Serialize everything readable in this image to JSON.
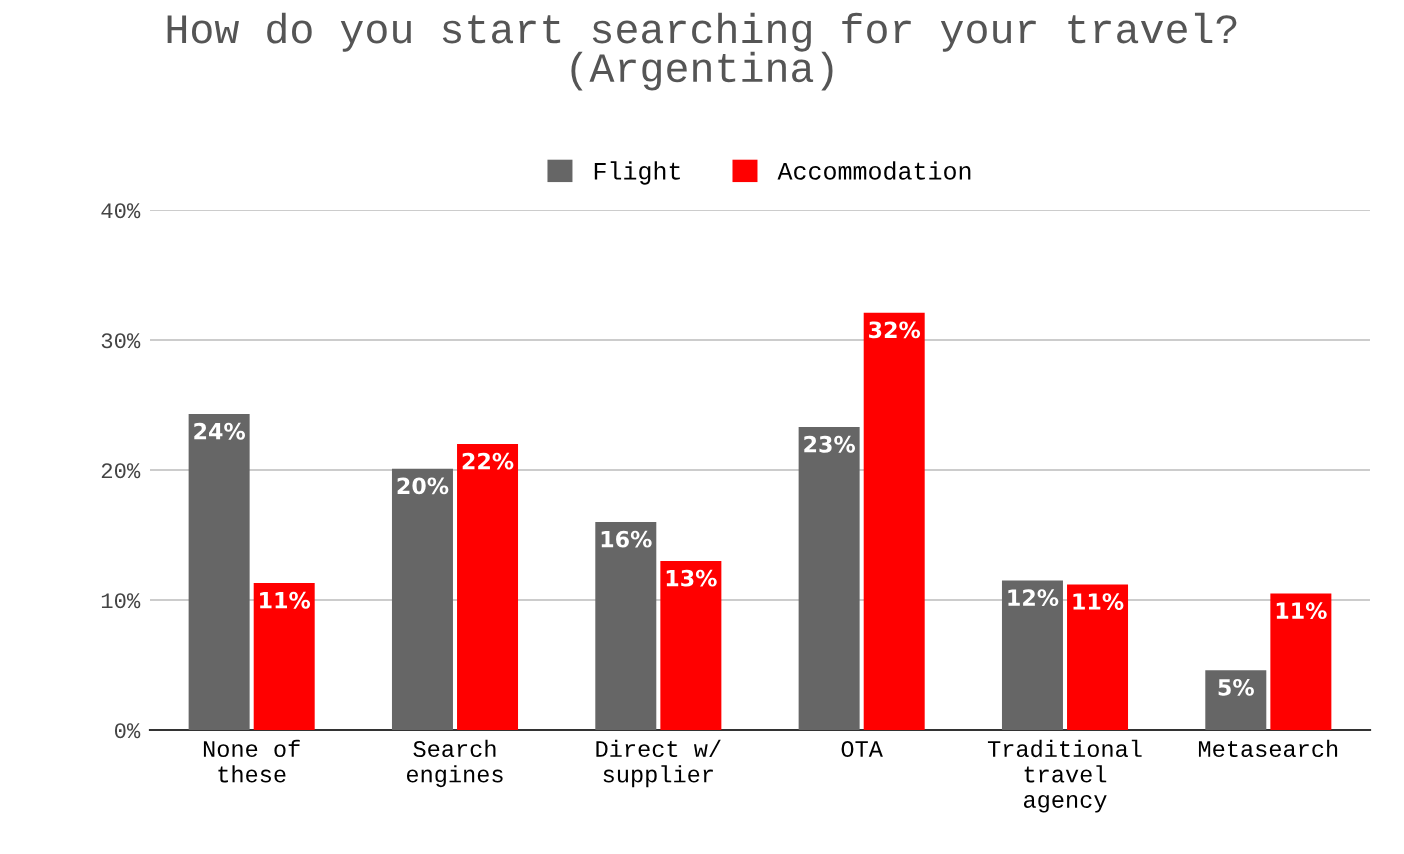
{
  "chart_data": {
    "type": "bar",
    "title": "How do you start searching for your travel?\n(Argentina)",
    "categories": [
      "None of\nthese",
      "Search\nengines",
      "Direct w/\nsupplier",
      "OTA",
      "Traditional\ntravel\nagency",
      "Metasearch"
    ],
    "series": [
      {
        "name": "Flight",
        "color": "#666666",
        "values": [
          24.3,
          20.1,
          16,
          23.3,
          11.5,
          4.6
        ],
        "value_labels": [
          "24%",
          "20%",
          "16%",
          "23%",
          "12%",
          "5%"
        ]
      },
      {
        "name": "Accommodation",
        "color": "#ff0000",
        "values": [
          11.3,
          22,
          13,
          32.1,
          11.2,
          10.5
        ],
        "value_labels": [
          "11%",
          "22%",
          "13%",
          "32%",
          "11%",
          "11%"
        ]
      }
    ],
    "ylim": [
      0,
      40
    ],
    "yticks": [
      {
        "value": 0,
        "label": "0%"
      },
      {
        "value": 10,
        "label": "10%"
      },
      {
        "value": 20,
        "label": "20%"
      },
      {
        "value": 30,
        "label": "30%"
      },
      {
        "value": 40,
        "label": "40%"
      }
    ],
    "grid": "y",
    "legend": "top"
  }
}
